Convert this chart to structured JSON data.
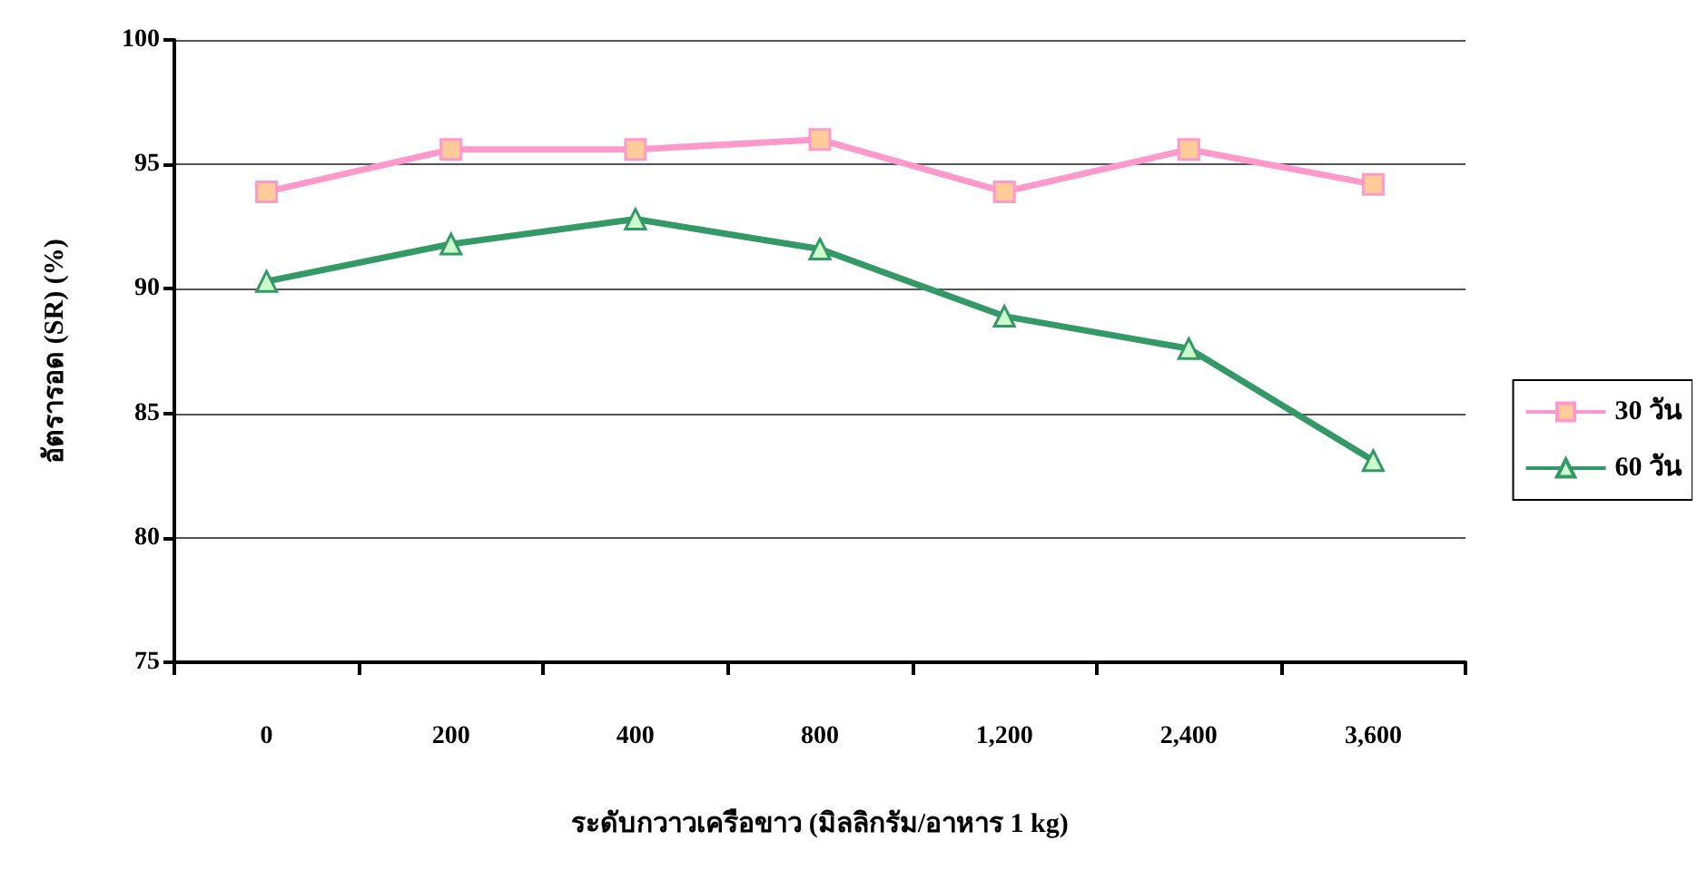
{
  "chart_data": {
    "type": "line",
    "xlabel": "ระดับกวาวเครือขาว (มิลลิกรัม/อาหาร 1 kg)",
    "ylabel": "อัตรารอด (SR) (%)",
    "categories": [
      "0",
      "200",
      "400",
      "800",
      "1,200",
      "2,400",
      "3,600"
    ],
    "series": [
      {
        "name": "30 วัน",
        "color": "#ff99cc",
        "marker": "square",
        "values": [
          93.9,
          95.6,
          95.6,
          96.0,
          93.9,
          95.6,
          94.2
        ]
      },
      {
        "name": "60 วัน",
        "color": "#339966",
        "marker": "triangle",
        "values": [
          90.3,
          91.8,
          92.8,
          91.6,
          88.9,
          87.6,
          83.1
        ]
      }
    ],
    "ylim": [
      75,
      100
    ],
    "yticks": [
      75,
      80,
      85,
      90,
      95,
      100
    ],
    "grid": "y",
    "legend": "right"
  }
}
